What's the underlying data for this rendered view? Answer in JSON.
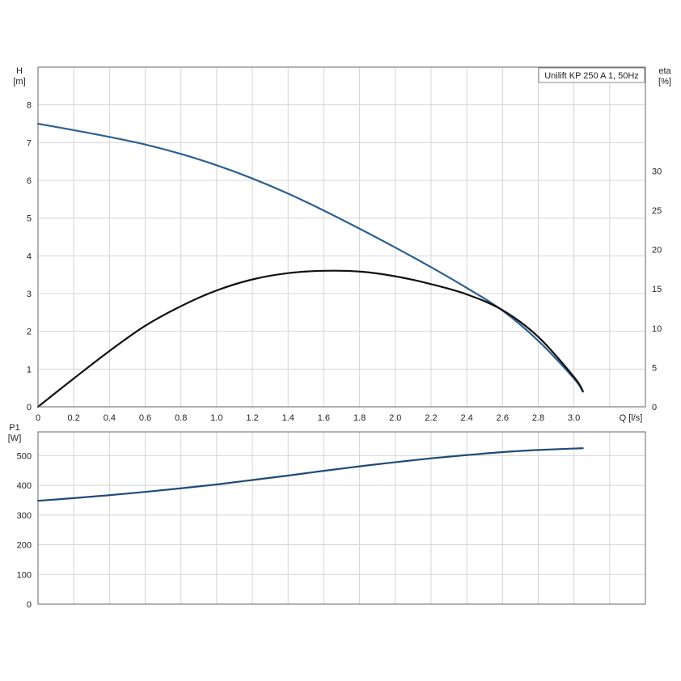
{
  "chart_data": [
    {
      "type": "line",
      "title": "",
      "legend_text": "Unilift KP 250 A 1, 50Hz",
      "legend_position": "top-right",
      "grid": true,
      "xlabel": "Q [l/s]",
      "xlim": [
        0,
        3.4
      ],
      "x_ticks": [
        "0",
        "0.2",
        "0.4",
        "0.6",
        "0.8",
        "1.0",
        "1.2",
        "1.4",
        "1.6",
        "1.8",
        "2.0",
        "2.2",
        "2.4",
        "2.6",
        "2.8",
        "3.0"
      ],
      "y_left": {
        "label_top": "H",
        "label_unit": "[m]",
        "ylim": [
          0,
          9
        ],
        "ticks": [
          "0",
          "1",
          "2",
          "3",
          "4",
          "5",
          "6",
          "7",
          "8"
        ]
      },
      "y_right": {
        "label_top": "eta",
        "label_unit": "[%]",
        "ylim": [
          0,
          43.2
        ],
        "ticks": [
          "0",
          "5",
          "10",
          "15",
          "20",
          "25",
          "30"
        ]
      },
      "series": [
        {
          "axis": "left",
          "color": "#2e5f8f",
          "x": [
            0,
            0.2,
            0.4,
            0.6,
            0.8,
            1.0,
            1.2,
            1.4,
            1.6,
            1.8,
            2.0,
            2.2,
            2.4,
            2.6,
            2.8,
            3.0,
            3.05
          ],
          "y": [
            7.5,
            7.33,
            7.15,
            6.95,
            6.7,
            6.4,
            6.05,
            5.65,
            5.2,
            4.72,
            4.22,
            3.7,
            3.15,
            2.55,
            1.75,
            0.75,
            0.4
          ]
        },
        {
          "axis": "right",
          "color": "#111111",
          "x": [
            0,
            0.2,
            0.4,
            0.6,
            0.8,
            1.0,
            1.2,
            1.4,
            1.6,
            1.8,
            2.0,
            2.2,
            2.4,
            2.6,
            2.8,
            3.0,
            3.05
          ],
          "y": [
            0,
            3.6,
            7.1,
            10.3,
            12.8,
            14.8,
            16.2,
            17.0,
            17.3,
            17.2,
            16.6,
            15.6,
            14.3,
            12.3,
            8.9,
            3.8,
            2.0
          ]
        }
      ]
    },
    {
      "type": "line",
      "title": "",
      "grid": true,
      "xlim": [
        0,
        3.4
      ],
      "y_left": {
        "label_top": "P1",
        "label_unit": "[W]",
        "ylim": [
          0,
          580
        ],
        "ticks": [
          "0",
          "100",
          "200",
          "300",
          "400",
          "500"
        ]
      },
      "series": [
        {
          "axis": "left",
          "color": "#1f4a78",
          "x": [
            0,
            0.2,
            0.4,
            0.6,
            0.8,
            1.0,
            1.2,
            1.4,
            1.6,
            1.8,
            2.0,
            2.2,
            2.4,
            2.6,
            2.8,
            3.0,
            3.05
          ],
          "y": [
            348,
            357,
            367,
            378,
            390,
            403,
            418,
            433,
            449,
            464,
            478,
            491,
            502,
            512,
            519,
            524,
            525
          ]
        }
      ]
    }
  ]
}
